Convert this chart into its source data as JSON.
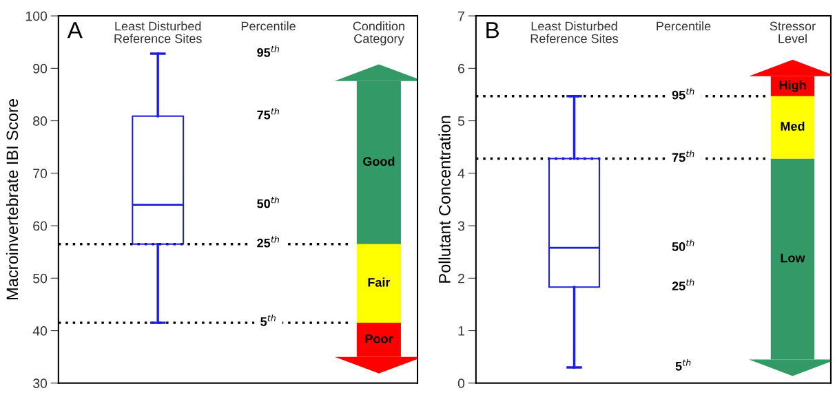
{
  "chart_data": [
    {
      "type": "box",
      "title": "A",
      "categories": [
        "Least Disturbed\nReference Sites"
      ],
      "ylabel": "Macroinvertebrate IBI Score",
      "ylim": [
        30,
        100
      ],
      "yticks": [
        30,
        40,
        50,
        60,
        70,
        80,
        90,
        100
      ],
      "tick_labels": "y",
      "grid": false,
      "series": [
        {
          "color": "#1f1fd6",
          "boxes": [
            {
              "low": 41.5,
              "q1": 56.5,
              "median": 64,
              "q3": 80.9,
              "high": 92.8
            }
          ]
        }
      ],
      "ref_lines": [
        {
          "axis": "y",
          "value": 56.5,
          "line_style": "dotted",
          "color": "#000000"
        },
        {
          "axis": "y",
          "value": 41.5,
          "line_style": "dotted",
          "color": "#000000"
        }
      ],
      "bands": [
        {
          "axis": "y",
          "from": 35,
          "to": 41.5,
          "label": "Poor",
          "color": "#ff0000"
        },
        {
          "axis": "y",
          "from": 41.5,
          "to": 56.5,
          "label": "Fair",
          "color": "#ffff00"
        },
        {
          "axis": "y",
          "from": 56.5,
          "to": 87.6,
          "label": "Good",
          "color": "#339966"
        }
      ],
      "annotations": [
        "Percentile",
        "Condition\nCategory",
        "95$^{th}$",
        "75$^{th}$",
        "50$^{th}$",
        "25$^{th}$",
        "5$^{th}$"
      ]
    },
    {
      "type": "box",
      "title": "B",
      "categories": [
        "Least Disturbed\nReference Sites"
      ],
      "ylabel": "Pollutant Concentration",
      "ylim": [
        0,
        7
      ],
      "yticks": [
        0,
        1,
        2,
        3,
        4,
        5,
        6,
        7
      ],
      "tick_labels": "y",
      "grid": false,
      "series": [
        {
          "color": "#1f1fd6",
          "boxes": [
            {
              "low": 0.3,
              "q1": 1.83,
              "median": 2.58,
              "q3": 4.28,
              "high": 5.47
            }
          ]
        }
      ],
      "ref_lines": [
        {
          "axis": "y",
          "value": 5.47,
          "line_style": "dotted",
          "color": "#000000"
        },
        {
          "axis": "y",
          "value": 4.28,
          "line_style": "dotted",
          "color": "#000000"
        }
      ],
      "bands": [
        {
          "axis": "y",
          "from": 0.45,
          "to": 4.28,
          "label": "Low",
          "color": "#339966"
        },
        {
          "axis": "y",
          "from": 4.28,
          "to": 5.47,
          "label": "Med",
          "color": "#ffff00"
        },
        {
          "axis": "y",
          "from": 5.47,
          "to": 5.85,
          "label": "High",
          "color": "#ff0000"
        }
      ],
      "annotations": [
        "Percentile",
        "Stressor\nLevel",
        "95$^{th}$",
        "75$^{th}$",
        "50$^{th}$",
        "25$^{th}$",
        "5$^{th}$"
      ]
    }
  ]
}
